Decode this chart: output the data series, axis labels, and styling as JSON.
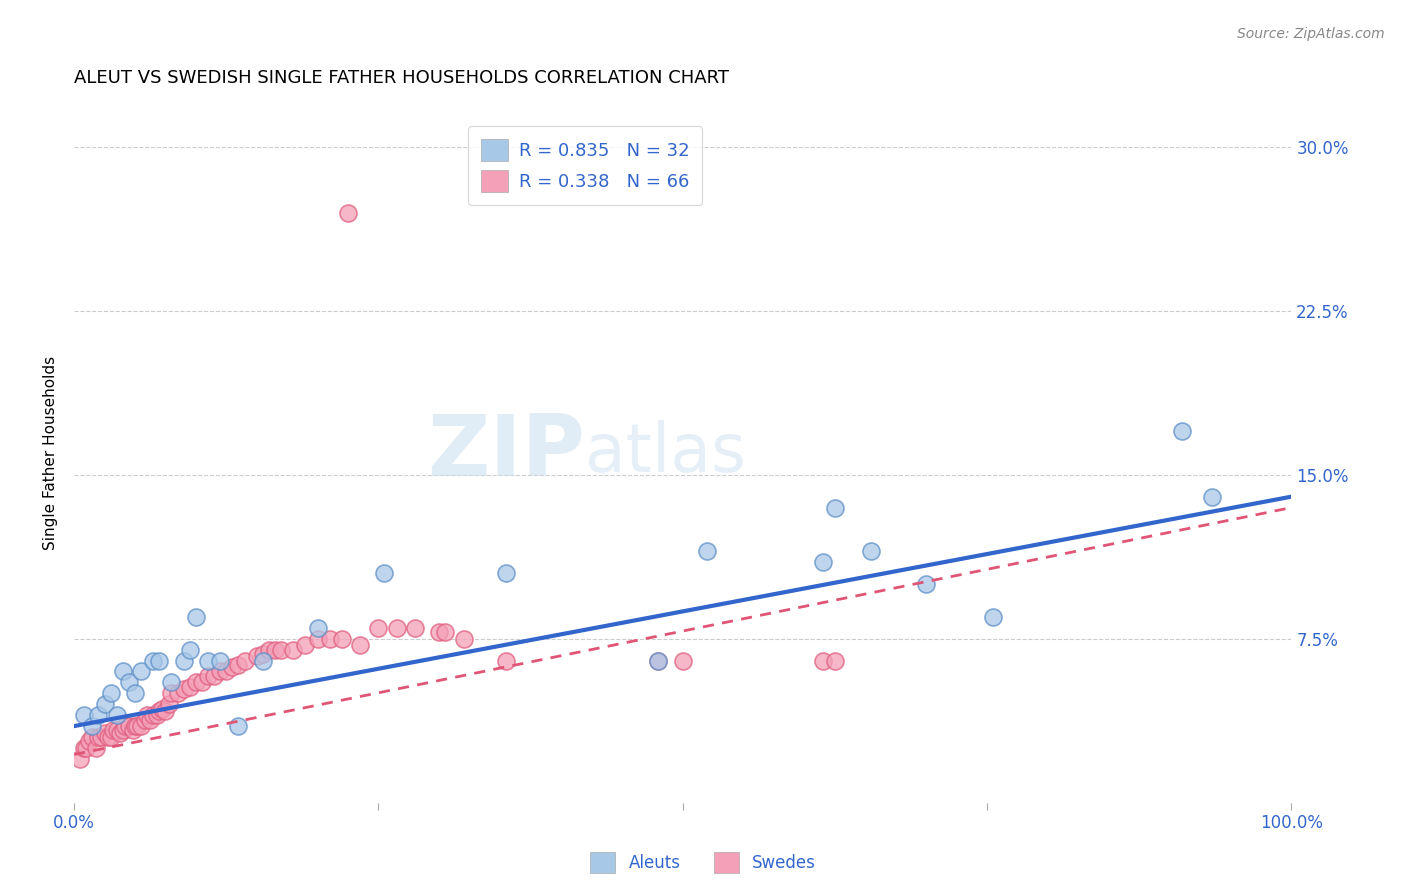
{
  "title": "ALEUT VS SWEDISH SINGLE FATHER HOUSEHOLDS CORRELATION CHART",
  "source": "Source: ZipAtlas.com",
  "ylabel": "Single Father Households",
  "xlim": [
    0,
    1.0
  ],
  "ylim": [
    0,
    0.32
  ],
  "xticks": [
    0.0,
    0.25,
    0.5,
    0.75,
    1.0
  ],
  "xticklabels": [
    "0.0%",
    "",
    "",
    "",
    "100.0%"
  ],
  "yticks": [
    0.0,
    0.075,
    0.15,
    0.225,
    0.3
  ],
  "yticklabels": [
    "",
    "7.5%",
    "15.0%",
    "22.5%",
    "30.0%"
  ],
  "aleuts_R": 0.835,
  "aleuts_N": 32,
  "swedes_R": 0.338,
  "swedes_N": 66,
  "aleut_color": "#a8c8e8",
  "swede_color": "#f4a0b8",
  "aleut_edge_color": "#6090c8",
  "swede_edge_color": "#e06080",
  "aleut_line_color": "#3366cc",
  "swede_line_color": "#e05575",
  "background_color": "#ffffff",
  "grid_color": "#cccccc",
  "tick_color": "#3366cc",
  "aleuts_x": [
    0.008,
    0.015,
    0.02,
    0.025,
    0.03,
    0.035,
    0.04,
    0.045,
    0.05,
    0.055,
    0.065,
    0.07,
    0.08,
    0.09,
    0.095,
    0.1,
    0.11,
    0.12,
    0.135,
    0.155,
    0.2,
    0.255,
    0.355,
    0.48,
    0.52,
    0.615,
    0.625,
    0.655,
    0.7,
    0.755,
    0.91,
    0.935
  ],
  "aleuts_y": [
    0.04,
    0.035,
    0.04,
    0.045,
    0.05,
    0.04,
    0.06,
    0.055,
    0.05,
    0.06,
    0.065,
    0.065,
    0.055,
    0.065,
    0.07,
    0.085,
    0.065,
    0.065,
    0.035,
    0.065,
    0.08,
    0.105,
    0.105,
    0.065,
    0.115,
    0.11,
    0.135,
    0.115,
    0.1,
    0.085,
    0.17,
    0.14
  ],
  "swedes_x": [
    0.005,
    0.008,
    0.01,
    0.012,
    0.015,
    0.018,
    0.02,
    0.022,
    0.025,
    0.028,
    0.03,
    0.032,
    0.035,
    0.038,
    0.04,
    0.042,
    0.045,
    0.048,
    0.05,
    0.052,
    0.055,
    0.058,
    0.06,
    0.062,
    0.065,
    0.068,
    0.07,
    0.072,
    0.075,
    0.078,
    0.08,
    0.085,
    0.09,
    0.095,
    0.1,
    0.105,
    0.11,
    0.115,
    0.12,
    0.125,
    0.13,
    0.135,
    0.14,
    0.15,
    0.155,
    0.16,
    0.165,
    0.17,
    0.18,
    0.19,
    0.2,
    0.21,
    0.22,
    0.235,
    0.25,
    0.265,
    0.28,
    0.3,
    0.305,
    0.32,
    0.355,
    0.48,
    0.5,
    0.615,
    0.625,
    0.225
  ],
  "swedes_y": [
    0.02,
    0.025,
    0.025,
    0.028,
    0.03,
    0.025,
    0.03,
    0.03,
    0.032,
    0.03,
    0.03,
    0.033,
    0.033,
    0.032,
    0.033,
    0.035,
    0.035,
    0.033,
    0.035,
    0.035,
    0.035,
    0.038,
    0.04,
    0.038,
    0.04,
    0.04,
    0.042,
    0.043,
    0.042,
    0.045,
    0.05,
    0.05,
    0.052,
    0.053,
    0.055,
    0.055,
    0.058,
    0.058,
    0.06,
    0.06,
    0.062,
    0.063,
    0.065,
    0.067,
    0.068,
    0.07,
    0.07,
    0.07,
    0.07,
    0.072,
    0.075,
    0.075,
    0.075,
    0.072,
    0.08,
    0.08,
    0.08,
    0.078,
    0.078,
    0.075,
    0.065,
    0.065,
    0.065,
    0.065,
    0.065,
    0.27
  ],
  "aleut_line_x0": 0.0,
  "aleut_line_y0": 0.035,
  "aleut_line_x1": 1.0,
  "aleut_line_y1": 0.14,
  "swede_line_x0": 0.0,
  "swede_line_y0": 0.022,
  "swede_line_x1": 1.0,
  "swede_line_y1": 0.135
}
